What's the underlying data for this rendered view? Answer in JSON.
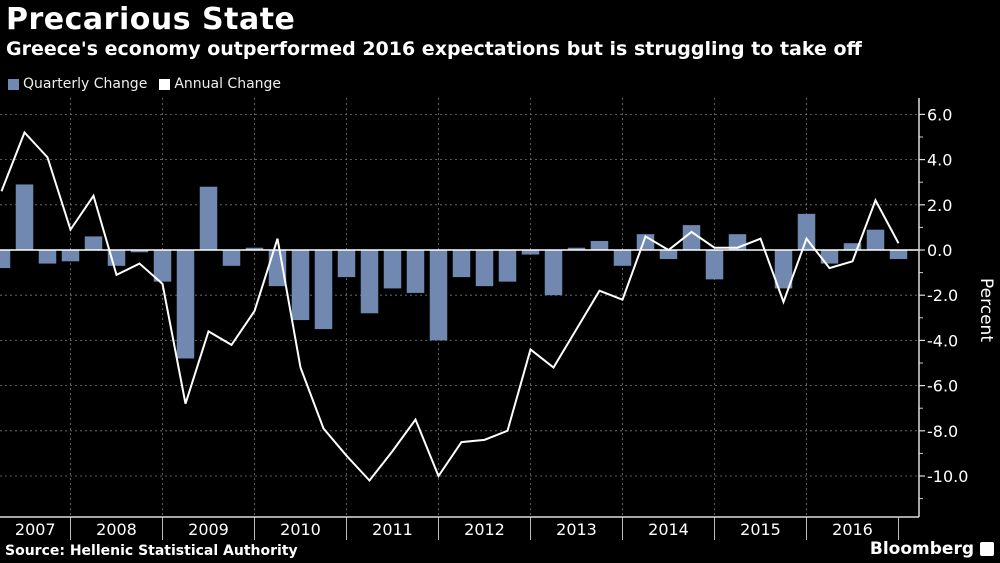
{
  "chart_data": {
    "type": "bar",
    "title": "Precarious State",
    "subtitle": "Greece's economy outperformed 2016 expectations but is struggling to take off",
    "xlabel": "",
    "ylabel": "Percent",
    "ylim": [
      -12,
      6.5
    ],
    "yticks": [
      6.0,
      4.0,
      2.0,
      0.0,
      -2.0,
      -4.0,
      -6.0,
      -8.0,
      -10.0
    ],
    "ytick_labels": [
      "6.0",
      "4.0",
      "2.0",
      "0.0",
      "-2.0",
      "-4.0",
      "-6.0",
      "-8.0",
      "-10.0"
    ],
    "grid": true,
    "legend_position": "top-left",
    "year_labels": [
      "2007",
      "2008",
      "2009",
      "2010",
      "2011",
      "2012",
      "2013",
      "2014",
      "2015",
      "2016"
    ],
    "categories": [
      "2007Q1",
      "2007Q2",
      "2007Q3",
      "2007Q4",
      "2008Q1",
      "2008Q2",
      "2008Q3",
      "2008Q4",
      "2009Q1",
      "2009Q2",
      "2009Q3",
      "2009Q4",
      "2010Q1",
      "2010Q2",
      "2010Q3",
      "2010Q4",
      "2011Q1",
      "2011Q2",
      "2011Q3",
      "2011Q4",
      "2012Q1",
      "2012Q2",
      "2012Q3",
      "2012Q4",
      "2013Q1",
      "2013Q2",
      "2013Q3",
      "2013Q4",
      "2014Q1",
      "2014Q2",
      "2014Q3",
      "2014Q4",
      "2015Q1",
      "2015Q2",
      "2015Q3",
      "2015Q4",
      "2016Q1",
      "2016Q2",
      "2016Q3",
      "2016Q4"
    ],
    "series": [
      {
        "name": "Quarterly Change",
        "type": "bar",
        "color": "#7189b1",
        "values": [
          -0.8,
          2.9,
          -0.6,
          -0.5,
          0.6,
          -0.7,
          -0.1,
          -1.4,
          -4.8,
          2.8,
          -0.7,
          0.1,
          -1.6,
          -3.1,
          -3.5,
          -1.2,
          -2.8,
          -1.7,
          -1.9,
          -4.0,
          -1.2,
          -1.6,
          -1.4,
          -0.2,
          -2.0,
          0.1,
          0.4,
          -0.7,
          0.7,
          -0.4,
          1.1,
          -1.3,
          0.7,
          0.0,
          -1.7,
          1.6,
          -0.6,
          0.3,
          0.9,
          -0.4
        ]
      },
      {
        "name": "Annual Change",
        "type": "line",
        "color": "#ffffff",
        "values": [
          2.6,
          5.2,
          4.1,
          0.9,
          2.4,
          -1.1,
          -0.6,
          -1.5,
          -6.8,
          -3.6,
          -4.2,
          -2.7,
          0.5,
          -5.2,
          -7.9,
          -9.1,
          -10.2,
          -8.9,
          -7.5,
          -10.0,
          -8.5,
          -8.4,
          -8.0,
          -4.4,
          -5.2,
          -3.5,
          -1.8,
          -2.2,
          0.6,
          0.0,
          0.8,
          0.1,
          0.1,
          0.5,
          -2.3,
          0.5,
          -0.8,
          -0.5,
          2.2,
          0.3
        ]
      }
    ]
  },
  "footer": {
    "source": "Source: Hellenic Statistical Authority",
    "brand": "Bloomberg"
  }
}
